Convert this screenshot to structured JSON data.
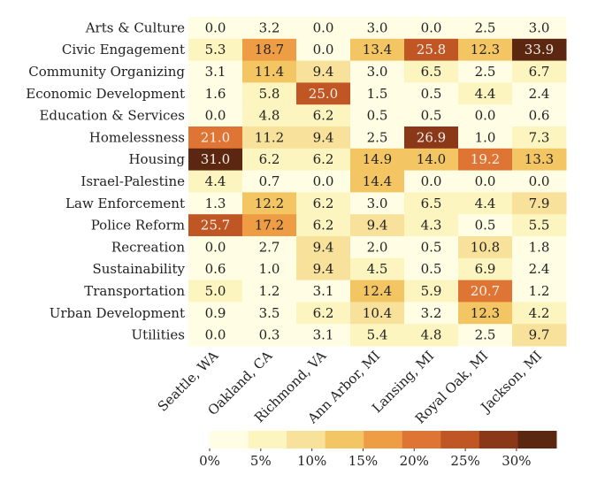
{
  "chart_data": {
    "type": "heatmap",
    "title": "",
    "xlabel": "",
    "ylabel": "",
    "rows": [
      "Arts & Culture",
      "Civic Engagement",
      "Community Organizing",
      "Economic Development",
      "Education & Services",
      "Homelessness",
      "Housing",
      "Israel-Palestine",
      "Law Enforcement",
      "Police Reform",
      "Recreation",
      "Sustainability",
      "Transportation",
      "Urban Development",
      "Utilities"
    ],
    "columns": [
      "Seattle, WA",
      "Oakland, CA",
      "Richmond, VA",
      "Ann Arbor, MI",
      "Lansing, MI",
      "Royal Oak, MI",
      "Jackson, MI"
    ],
    "values": [
      [
        0.0,
        3.2,
        0.0,
        3.0,
        0.0,
        2.5,
        3.0
      ],
      [
        5.3,
        18.7,
        0.0,
        13.4,
        25.8,
        12.3,
        33.9
      ],
      [
        3.1,
        11.4,
        9.4,
        3.0,
        6.5,
        2.5,
        6.7
      ],
      [
        1.6,
        5.8,
        25.0,
        1.5,
        0.5,
        4.4,
        2.4
      ],
      [
        0.0,
        4.8,
        6.2,
        0.5,
        0.5,
        0.0,
        0.6
      ],
      [
        21.0,
        11.2,
        9.4,
        2.5,
        26.9,
        1.0,
        7.3
      ],
      [
        31.0,
        6.2,
        6.2,
        14.9,
        14.0,
        19.2,
        13.3
      ],
      [
        4.4,
        0.7,
        0.0,
        14.4,
        0.0,
        0.0,
        0.0
      ],
      [
        1.3,
        12.2,
        6.2,
        3.0,
        6.5,
        4.4,
        7.9
      ],
      [
        25.7,
        17.2,
        6.2,
        9.4,
        4.3,
        0.5,
        5.5
      ],
      [
        0.0,
        2.7,
        9.4,
        2.0,
        0.5,
        10.8,
        1.8
      ],
      [
        0.6,
        1.0,
        9.4,
        4.5,
        0.5,
        6.9,
        2.4
      ],
      [
        5.0,
        1.2,
        3.1,
        12.4,
        5.9,
        20.7,
        1.2
      ],
      [
        0.9,
        3.5,
        6.2,
        10.4,
        3.2,
        12.3,
        4.2
      ],
      [
        0.0,
        0.3,
        3.1,
        5.4,
        4.8,
        2.5,
        9.7
      ]
    ],
    "colorbar": {
      "range": [
        0,
        33.9
      ],
      "ticks": [
        0,
        5,
        10,
        15,
        20,
        25,
        30
      ],
      "tick_labels": [
        "0%",
        "5%",
        "10%",
        "15%",
        "20%",
        "25%",
        "30%"
      ],
      "colors": [
        "#fffde4",
        "#fdf5c0",
        "#f8e19a",
        "#f4c563",
        "#ee9d45",
        "#df7535",
        "#bf5624",
        "#8a3818",
        "#5c2710"
      ],
      "placement": "bottom"
    }
  }
}
